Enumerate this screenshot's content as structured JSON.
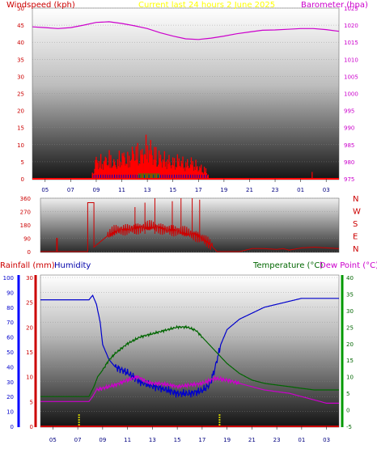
{
  "header": {
    "windspeed_label": "Windspeed (kph)",
    "title": "Current last 24 hours 2 June 2025",
    "barometer_label": "Barometer (hpa)"
  },
  "colors": {
    "windspeed": "#ff0000",
    "gust_accent": "#00aa00",
    "wind_avg": "#0000cc",
    "barometer": "#cc00cc",
    "title": "#ffff00",
    "direction": "#cc0000",
    "rainfall": "#cc0000",
    "rain_marker": "#cccc00",
    "humidity": "#0000aa",
    "temperature": "#006600",
    "dewpoint": "#cc00cc"
  },
  "direction_letters": [
    "N",
    "W",
    "S",
    "E",
    "N"
  ],
  "bottom_labels": {
    "rainfall": "Rainfall (mm)",
    "humidity": "Humidity",
    "temperature": "Temperature (°C)",
    "dewpoint": "Dew Point (°C)"
  },
  "chart_data": [
    {
      "type": "line",
      "title": "Current last 24 hours 2 June 2025",
      "x_ticks": [
        "05",
        "07",
        "09",
        "11",
        "13",
        "15",
        "17",
        "19",
        "21",
        "23",
        "01",
        "03"
      ],
      "x_hours": [
        4,
        28
      ],
      "y_left": {
        "label": "Windspeed (kph)",
        "range": [
          0,
          50
        ],
        "ticks": [
          0,
          5,
          10,
          15,
          20,
          25,
          30,
          35,
          40,
          45,
          50
        ]
      },
      "y_right": {
        "label": "Barometer (hpa)",
        "range": [
          975,
          1025
        ],
        "ticks": [
          975,
          980,
          985,
          990,
          995,
          1000,
          1005,
          1010,
          1015,
          1020,
          1025
        ]
      },
      "series": [
        {
          "name": "Barometer (hpa)",
          "axis": "right",
          "x": [
            4,
            5,
            6,
            7,
            8,
            9,
            10,
            11,
            12,
            13,
            14,
            15,
            16,
            17,
            18,
            19,
            20,
            21,
            22,
            23,
            24,
            25,
            26,
            27,
            28
          ],
          "y": [
            1019.5,
            1019.3,
            1019,
            1019.3,
            1020,
            1020.8,
            1021,
            1020.5,
            1019.8,
            1019,
            1017.8,
            1016.8,
            1016,
            1015.8,
            1016.2,
            1016.8,
            1017.5,
            1018,
            1018.5,
            1018.6,
            1018.8,
            1019,
            1019,
            1018.7,
            1018.2
          ]
        },
        {
          "name": "Windspeed (kph)",
          "axis": "left",
          "x": [
            8.7,
            9,
            9.5,
            10,
            10.5,
            11,
            11.5,
            12,
            12.5,
            13,
            13.5,
            14,
            14.5,
            15,
            15.5,
            16,
            16.5,
            17,
            17.5,
            17.8
          ],
          "y": [
            2,
            8,
            7,
            9,
            6,
            10,
            8,
            12,
            10,
            14,
            11,
            9,
            8,
            7,
            8,
            6,
            7,
            5,
            4,
            2
          ]
        }
      ]
    },
    {
      "type": "line",
      "x_ticks": [
        "05",
        "07",
        "09",
        "11",
        "13",
        "15",
        "17",
        "19",
        "21",
        "23",
        "01",
        "03"
      ],
      "y_left": {
        "range": [
          0,
          360
        ],
        "ticks": [
          0,
          90,
          180,
          270,
          360
        ]
      },
      "series": [
        {
          "name": "Wind direction",
          "x": [
            4,
            5.3,
            5.3,
            5.35,
            5.35,
            7.8,
            7.8,
            8.3,
            8.3,
            9.3,
            10,
            11,
            12,
            13,
            14,
            15,
            16,
            16.5,
            17,
            17.5,
            18.2,
            19,
            20,
            21,
            22,
            23,
            23.5,
            24,
            25,
            26,
            27,
            28
          ],
          "y": [
            0,
            0,
            90,
            90,
            0,
            0,
            330,
            330,
            30,
            100,
            140,
            150,
            160,
            170,
            150,
            140,
            120,
            110,
            90,
            60,
            0,
            0,
            0,
            20,
            20,
            15,
            20,
            10,
            25,
            30,
            25,
            20
          ]
        }
      ]
    },
    {
      "type": "line",
      "x_ticks": [
        "05",
        "07",
        "09",
        "11",
        "13",
        "15",
        "17",
        "19",
        "21",
        "23",
        "01",
        "03"
      ],
      "y_left": {
        "label": "Rainfall (mm)",
        "range": [
          0,
          30
        ],
        "ticks": [
          0,
          5,
          10,
          15,
          20,
          25,
          30
        ]
      },
      "y_humidity": {
        "label": "Humidity",
        "range": [
          0,
          100
        ],
        "ticks": [
          0,
          10,
          20,
          30,
          40,
          50,
          60,
          70,
          80,
          90,
          100
        ]
      },
      "y_right": {
        "label": "Temperature (°C)",
        "range": [
          -5,
          40
        ],
        "ticks": [
          -5,
          0,
          5,
          10,
          15,
          20,
          25,
          30,
          35,
          40
        ]
      },
      "series": [
        {
          "name": "Humidity",
          "axis": "humidity",
          "x": [
            4,
            5,
            6,
            7,
            7.9,
            8.2,
            8.5,
            8.8,
            9,
            9.5,
            10,
            11,
            12,
            13,
            14,
            15,
            16,
            17,
            17.6,
            18,
            18.5,
            19,
            20,
            21,
            22,
            23,
            24,
            25,
            26,
            27,
            28
          ],
          "y": [
            85,
            85,
            85,
            85,
            85,
            88,
            82,
            70,
            55,
            45,
            40,
            36,
            30,
            27,
            25,
            22,
            22,
            24,
            28,
            38,
            55,
            65,
            72,
            76,
            80,
            82,
            84,
            86,
            86,
            86,
            86
          ]
        },
        {
          "name": "Temperature (°C)",
          "axis": "right",
          "x": [
            4,
            5,
            6,
            7,
            7.9,
            8.3,
            8.6,
            9,
            9.5,
            10,
            11,
            12,
            13,
            14,
            15,
            15.8,
            16.5,
            17,
            18,
            19,
            20,
            21,
            22,
            23,
            24,
            25,
            26,
            27,
            28
          ],
          "y": [
            4,
            4,
            4,
            4,
            4,
            7,
            10,
            12,
            15,
            17,
            20,
            22,
            23,
            24,
            25,
            25,
            24,
            22,
            18,
            14,
            11,
            9,
            8,
            7.5,
            7,
            6.5,
            6,
            6,
            6
          ]
        },
        {
          "name": "Dew Point (°C)",
          "axis": "right",
          "x": [
            4,
            5,
            6,
            7,
            7.9,
            8.2,
            8.5,
            9,
            9.5,
            10,
            11,
            11.8,
            12.5,
            13,
            14,
            15,
            16,
            17,
            17.7,
            18,
            19,
            20,
            21,
            22,
            23,
            24,
            25,
            26,
            27,
            28
          ],
          "y": [
            2.5,
            2.5,
            2.5,
            2.5,
            2.5,
            4,
            6,
            6.5,
            7,
            7.5,
            9,
            10,
            8.5,
            8,
            7.8,
            7,
            7.5,
            8,
            9,
            9.5,
            9,
            8,
            7,
            6,
            5.5,
            5,
            4,
            3,
            2,
            2
          ]
        },
        {
          "name": "Rainfall (mm)",
          "axis": "left",
          "x": [
            4,
            28
          ],
          "y": [
            0,
            0
          ]
        }
      ],
      "rain_markers_hours": [
        7.1,
        18.4
      ]
    }
  ]
}
